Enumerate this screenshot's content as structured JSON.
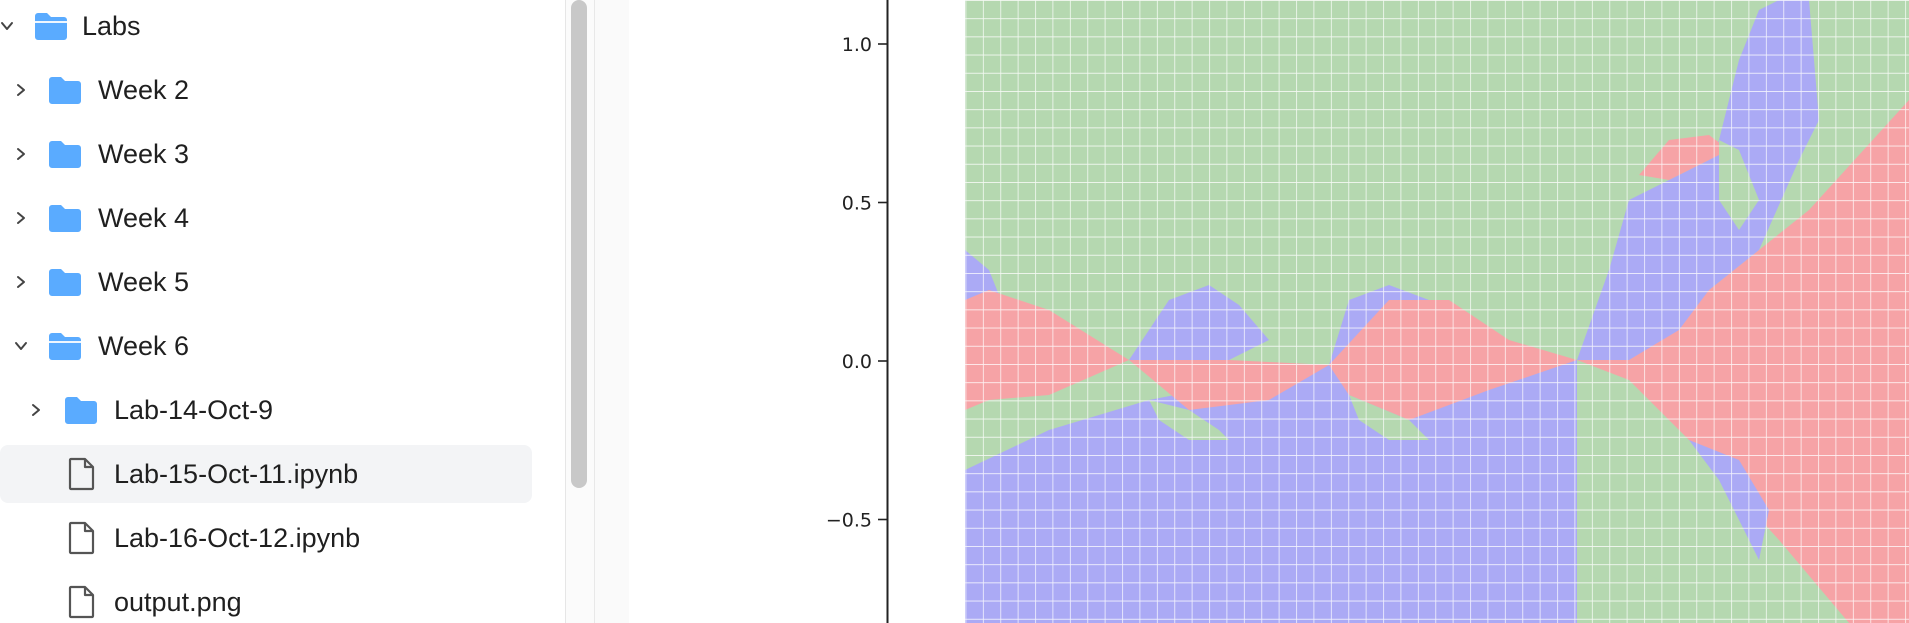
{
  "file_browser": {
    "items": [
      {
        "label": "Labs",
        "type": "folder-open",
        "expanded": true,
        "level": 0
      },
      {
        "label": "Week 2",
        "type": "folder",
        "expanded": false,
        "level": 1
      },
      {
        "label": "Week 3",
        "type": "folder",
        "expanded": false,
        "level": 1
      },
      {
        "label": "Week 4",
        "type": "folder",
        "expanded": false,
        "level": 1
      },
      {
        "label": "Week 5",
        "type": "folder",
        "expanded": false,
        "level": 1
      },
      {
        "label": "Week 6",
        "type": "folder-open",
        "expanded": true,
        "level": 1
      },
      {
        "label": "Lab-14-Oct-9",
        "type": "folder",
        "expanded": false,
        "level": 2
      },
      {
        "label": "Lab-15-Oct-11.ipynb",
        "type": "file",
        "selected": true,
        "level": 2
      },
      {
        "label": "Lab-16-Oct-12.ipynb",
        "type": "file",
        "level": 2
      },
      {
        "label": "output.png",
        "type": "file",
        "level": 2
      }
    ],
    "folder_color": "#5aabff"
  },
  "chart_data": {
    "type": "heatmap",
    "description_colors": {
      "red": "#f6a3a6",
      "green": "#b5d8b0",
      "blue": "#abaaf5"
    },
    "ytick_labels": [
      "1.0",
      "0.5",
      "0.0",
      "−0.5"
    ],
    "yticks": [
      1.0,
      0.5,
      0.0,
      -0.5
    ],
    "ylim": [
      -0.83,
      1.14
    ],
    "grid": true
  }
}
